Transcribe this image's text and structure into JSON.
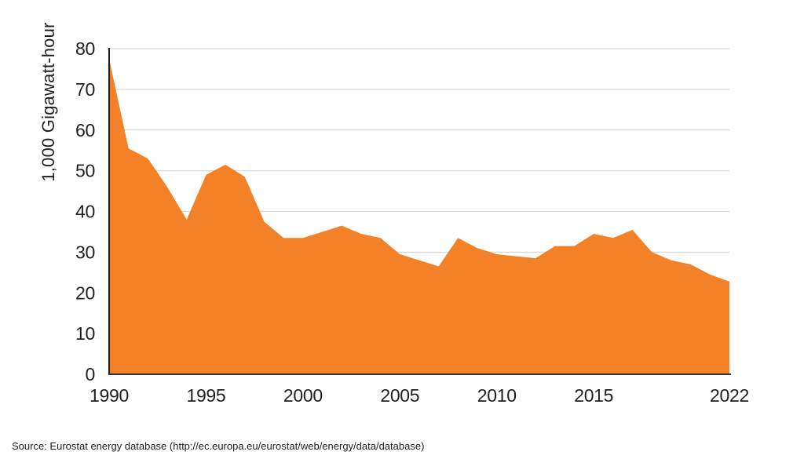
{
  "figure": {
    "source_note": "Source: Eurostat energy database (http://ec.europa.eu/eurostat/web/energy/data/database)"
  },
  "chart_data": {
    "type": "area",
    "ylabel": "1,000 Gigawatt-hour",
    "xlabel": "",
    "x": [
      1990,
      1991,
      1992,
      1993,
      1994,
      1995,
      1996,
      1997,
      1998,
      1999,
      2000,
      2001,
      2002,
      2003,
      2004,
      2005,
      2006,
      2007,
      2008,
      2009,
      2010,
      2011,
      2012,
      2013,
      2014,
      2015,
      2016,
      2017,
      2018,
      2019,
      2020,
      2021,
      2022
    ],
    "values": [
      77.5,
      55.5,
      53,
      46,
      38,
      49,
      51.5,
      48.5,
      37.5,
      33.5,
      33.5,
      35,
      36.5,
      34.5,
      33.5,
      29.5,
      28,
      26.5,
      33.5,
      31,
      29.5,
      29,
      28.5,
      31.5,
      31.5,
      34.5,
      33.5,
      35.5,
      30,
      28,
      27,
      24.5,
      22.8
    ],
    "y_ticks": [
      0,
      10,
      20,
      30,
      40,
      50,
      60,
      70,
      80
    ],
    "x_ticks": [
      1990,
      1995,
      2000,
      2005,
      2010,
      2015,
      2022
    ],
    "x_tick_labels": [
      "1990",
      "1995",
      "2000",
      "2005",
      "2010",
      "2015",
      "2022"
    ],
    "ylim": [
      0,
      80
    ],
    "xlim": [
      1990,
      2022
    ],
    "grid": "horizontal",
    "legend": "none",
    "colors": {
      "area": "#F28127",
      "grid": "#D9D9D9",
      "axis_y": "#1A1A1A",
      "axis_x": "#333333",
      "text": "#231F20"
    }
  }
}
